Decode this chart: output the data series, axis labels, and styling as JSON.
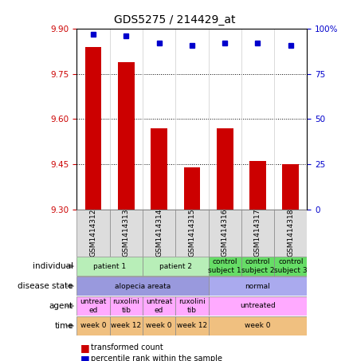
{
  "title": "GDS5275 / 214429_at",
  "samples": [
    "GSM1414312",
    "GSM1414313",
    "GSM1414314",
    "GSM1414315",
    "GSM1414316",
    "GSM1414317",
    "GSM1414318"
  ],
  "bar_values": [
    9.84,
    9.79,
    9.57,
    9.44,
    9.57,
    9.46,
    9.45
  ],
  "dot_values": [
    97,
    96,
    92,
    91,
    92,
    92,
    91
  ],
  "ylim": [
    9.3,
    9.9
  ],
  "ylim_right": [
    0,
    100
  ],
  "yticks_left": [
    9.3,
    9.45,
    9.6,
    9.75,
    9.9
  ],
  "yticks_right": [
    0,
    25,
    50,
    75,
    100
  ],
  "bar_color": "#cc0000",
  "dot_color": "#0000cc",
  "individual_row": {
    "label": "individual",
    "cells": [
      {
        "text": "patient 1",
        "span": [
          0,
          2
        ],
        "color": "#b8eeb8"
      },
      {
        "text": "patient 2",
        "span": [
          2,
          4
        ],
        "color": "#b8eeb8"
      },
      {
        "text": "control\nsubject 1",
        "span": [
          4,
          5
        ],
        "color": "#66dd66"
      },
      {
        "text": "control\nsubject 2",
        "span": [
          5,
          6
        ],
        "color": "#66dd66"
      },
      {
        "text": "control\nsubject 3",
        "span": [
          6,
          7
        ],
        "color": "#66dd66"
      }
    ]
  },
  "disease_row": {
    "label": "disease state",
    "cells": [
      {
        "text": "alopecia areata",
        "span": [
          0,
          4
        ],
        "color": "#9999dd"
      },
      {
        "text": "normal",
        "span": [
          4,
          7
        ],
        "color": "#aaaaee"
      }
    ]
  },
  "agent_row": {
    "label": "agent",
    "cells": [
      {
        "text": "untreat\ned",
        "span": [
          0,
          1
        ],
        "color": "#ffaaff"
      },
      {
        "text": "ruxolini\ntib",
        "span": [
          1,
          2
        ],
        "color": "#ffaaff"
      },
      {
        "text": "untreat\ned",
        "span": [
          2,
          3
        ],
        "color": "#ffaaff"
      },
      {
        "text": "ruxolini\ntib",
        "span": [
          3,
          4
        ],
        "color": "#ffaaff"
      },
      {
        "text": "untreated",
        "span": [
          4,
          7
        ],
        "color": "#ffaaff"
      }
    ]
  },
  "time_row": {
    "label": "time",
    "cells": [
      {
        "text": "week 0",
        "span": [
          0,
          1
        ],
        "color": "#f0c080"
      },
      {
        "text": "week 12",
        "span": [
          1,
          2
        ],
        "color": "#f0c080"
      },
      {
        "text": "week 0",
        "span": [
          2,
          3
        ],
        "color": "#f0c080"
      },
      {
        "text": "week 12",
        "span": [
          3,
          4
        ],
        "color": "#f0c080"
      },
      {
        "text": "week 0",
        "span": [
          4,
          7
        ],
        "color": "#f0c080"
      }
    ]
  }
}
